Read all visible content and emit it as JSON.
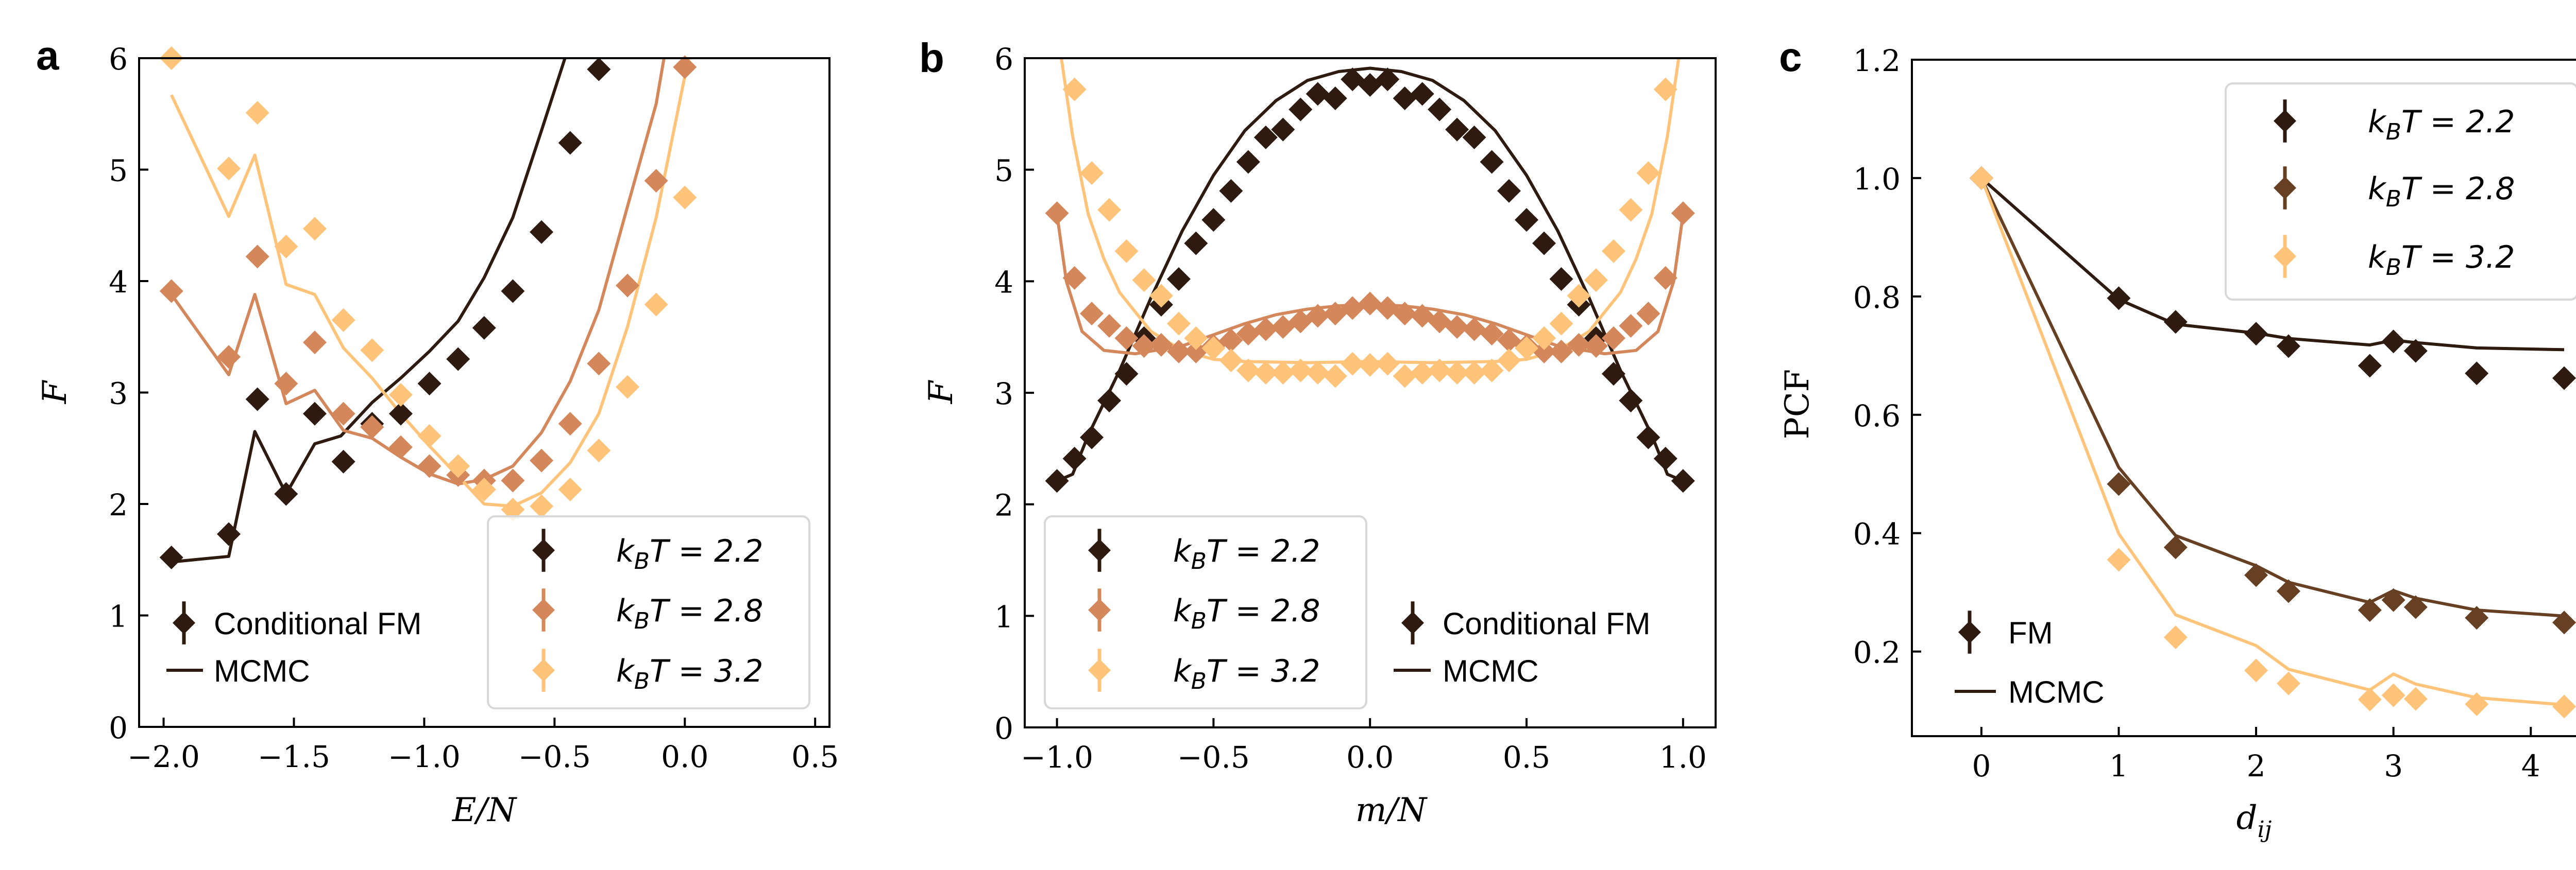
{
  "chart_data": [
    {
      "panel_label": "a",
      "type": "scatter",
      "xlabel": "E/N",
      "ylabel": "F",
      "xlim": [
        -2.094,
        0.555
      ],
      "ylim": [
        0,
        6
      ],
      "xticks": [
        -2.0,
        -1.5,
        -1.0,
        -0.5,
        0.0,
        0.5
      ],
      "xtick_labels": [
        "−2.0",
        "−1.5",
        "−1.0",
        "−0.5",
        "0.0",
        "0.5"
      ],
      "yticks": [
        0,
        1,
        2,
        3,
        4,
        5,
        6
      ],
      "ytick_labels": [
        "0",
        "1",
        "2",
        "3",
        "4",
        "5",
        "6"
      ],
      "legend_series_position": "bottom-right",
      "legend_method_position": "bottom-left",
      "legend_method": {
        "marker_label": "Conditional FM",
        "line_label": "MCMC"
      },
      "series": [
        {
          "name": "kBT = 2.2",
          "label_main": "k",
          "label_sub": "B",
          "label_rest": "T = 2.2",
          "color": "#2e1a0e",
          "points": {
            "x": [
              -1.97,
              -1.75,
              -1.64,
              -1.53,
              -1.42,
              -1.31,
              -1.2,
              -1.09,
              -0.98,
              -0.87,
              -0.77,
              -0.66,
              -0.55,
              -0.44,
              -0.33
            ],
            "y": [
              1.52,
              1.73,
              2.94,
              2.09,
              2.81,
              2.38,
              2.72,
              2.81,
              3.08,
              3.3,
              3.58,
              3.91,
              4.44,
              5.24,
              5.9
            ]
          },
          "line": {
            "x": [
              -1.97,
              -1.75,
              -1.65,
              -1.53,
              -1.42,
              -1.32,
              -1.2,
              -1.09,
              -0.98,
              -0.87,
              -0.77,
              -0.66,
              -0.55,
              -0.46
            ],
            "y": [
              1.48,
              1.53,
              2.65,
              2.09,
              2.54,
              2.61,
              2.91,
              3.13,
              3.37,
              3.64,
              4.03,
              4.57,
              5.35,
              6.0
            ]
          }
        },
        {
          "name": "kBT = 2.8",
          "label_main": "k",
          "label_sub": "B",
          "label_rest": "T = 2.8",
          "color": "#d4875a",
          "points": {
            "x": [
              -1.97,
              -1.75,
              -1.64,
              -1.53,
              -1.42,
              -1.31,
              -1.2,
              -1.09,
              -0.98,
              -0.87,
              -0.77,
              -0.66,
              -0.55,
              -0.44,
              -0.33,
              -0.22,
              -0.11,
              0.0
            ],
            "y": [
              3.91,
              3.32,
              4.22,
              3.08,
              3.45,
              2.81,
              2.69,
              2.51,
              2.34,
              2.26,
              2.21,
              2.21,
              2.39,
              2.72,
              3.26,
              3.96,
              4.9,
              5.92
            ]
          },
          "line": {
            "x": [
              -1.97,
              -1.75,
              -1.65,
              -1.53,
              -1.42,
              -1.31,
              -1.2,
              -1.09,
              -0.98,
              -0.87,
              -0.77,
              -0.66,
              -0.55,
              -0.44,
              -0.33,
              -0.22,
              -0.11,
              -0.08
            ],
            "y": [
              3.88,
              3.16,
              3.88,
              2.9,
              3.02,
              2.66,
              2.59,
              2.42,
              2.27,
              2.18,
              2.22,
              2.34,
              2.64,
              3.1,
              3.74,
              4.67,
              5.59,
              6.0
            ]
          }
        },
        {
          "name": "kBT = 3.2",
          "label_main": "k",
          "label_sub": "B",
          "label_rest": "T = 3.2",
          "color": "#ffc47a",
          "points": {
            "x": [
              -1.97,
              -1.75,
              -1.64,
              -1.53,
              -1.42,
              -1.31,
              -1.2,
              -1.09,
              -0.98,
              -0.87,
              -0.77,
              -0.66,
              -0.55,
              -0.44,
              -0.33,
              -0.22,
              -0.11,
              0.0
            ],
            "y": [
              6.0,
              5.01,
              5.51,
              4.31,
              4.47,
              3.65,
              3.38,
              2.98,
              2.61,
              2.34,
              2.13,
              1.95,
              1.98,
              2.13,
              2.48,
              3.05,
              3.79,
              4.75
            ]
          },
          "line": {
            "x": [
              -1.97,
              -1.75,
              -1.65,
              -1.53,
              -1.42,
              -1.31,
              -1.2,
              -1.09,
              -0.98,
              -0.87,
              -0.77,
              -0.66,
              -0.55,
              -0.44,
              -0.33,
              -0.22,
              -0.11,
              0.0,
              0.015
            ],
            "y": [
              5.67,
              4.58,
              5.13,
              3.97,
              3.88,
              3.4,
              3.13,
              2.81,
              2.52,
              2.25,
              2.0,
              1.98,
              2.1,
              2.37,
              2.81,
              3.59,
              4.57,
              5.84,
              6.0
            ]
          }
        }
      ]
    },
    {
      "panel_label": "b",
      "type": "scatter",
      "xlabel": "m/N",
      "ylabel": "F",
      "xlim": [
        -1.103,
        1.104
      ],
      "ylim": [
        0,
        6
      ],
      "xticks": [
        -1.0,
        -0.5,
        0.0,
        0.5,
        1.0
      ],
      "xtick_labels": [
        "−1.0",
        "−0.5",
        "0.0",
        "0.5",
        "1.0"
      ],
      "yticks": [
        0,
        1,
        2,
        3,
        4,
        5,
        6
      ],
      "ytick_labels": [
        "0",
        "1",
        "2",
        "3",
        "4",
        "5",
        "6"
      ],
      "legend_series_position": "bottom-left",
      "legend_method_position": "bottom-right",
      "legend_method": {
        "marker_label": "Conditional FM",
        "line_label": "MCMC"
      },
      "series": [
        {
          "name": "kBT = 2.2",
          "label_main": "k",
          "label_sub": "B",
          "label_rest": "T = 2.2",
          "color": "#2e1a0e",
          "points": {
            "x": [
              -1,
              -0.944,
              -0.889,
              -0.833,
              -0.778,
              -0.722,
              -0.667,
              -0.611,
              -0.556,
              -0.5,
              -0.444,
              -0.389,
              -0.333,
              -0.278,
              -0.222,
              -0.167,
              -0.111,
              -0.056,
              0,
              0.056,
              0.111,
              0.167,
              0.222,
              0.278,
              0.333,
              0.389,
              0.444,
              0.5,
              0.556,
              0.611,
              0.667,
              0.722,
              0.778,
              0.833,
              0.889,
              0.944,
              1
            ],
            "y": [
              2.21,
              2.41,
              2.6,
              2.93,
              3.17,
              3.49,
              3.79,
              4.02,
              4.34,
              4.55,
              4.81,
              5.07,
              5.29,
              5.36,
              5.54,
              5.68,
              5.64,
              5.81,
              5.76,
              5.81,
              5.64,
              5.68,
              5.54,
              5.36,
              5.29,
              5.07,
              4.81,
              4.55,
              4.34,
              4.02,
              3.79,
              3.49,
              3.17,
              2.93,
              2.6,
              2.41,
              2.21
            ]
          },
          "line": {
            "x": [
              -1,
              -0.95,
              -0.9,
              -0.8,
              -0.7,
              -0.6,
              -0.5,
              -0.4,
              -0.3,
              -0.2,
              -0.1,
              0,
              0.1,
              0.2,
              0.3,
              0.4,
              0.5,
              0.6,
              0.7,
              0.8,
              0.9,
              0.95,
              1
            ],
            "y": [
              2.21,
              2.27,
              2.62,
              3.2,
              3.85,
              4.45,
              4.95,
              5.35,
              5.62,
              5.8,
              5.88,
              5.91,
              5.88,
              5.8,
              5.62,
              5.35,
              4.95,
              4.45,
              3.85,
              3.2,
              2.62,
              2.27,
              2.21
            ]
          }
        },
        {
          "name": "kBT = 2.8",
          "label_main": "k",
          "label_sub": "B",
          "label_rest": "T = 2.8",
          "color": "#d4875a",
          "points": {
            "x": [
              -1,
              -0.944,
              -0.889,
              -0.833,
              -0.778,
              -0.722,
              -0.667,
              -0.611,
              -0.556,
              -0.5,
              -0.444,
              -0.389,
              -0.333,
              -0.278,
              -0.222,
              -0.167,
              -0.111,
              -0.056,
              0,
              0.056,
              0.111,
              0.167,
              0.222,
              0.278,
              0.333,
              0.389,
              0.444,
              0.5,
              0.556,
              0.611,
              0.667,
              0.722,
              0.778,
              0.833,
              0.889,
              0.944,
              1
            ],
            "y": [
              4.61,
              4.03,
              3.71,
              3.6,
              3.49,
              3.42,
              3.43,
              3.37,
              3.37,
              3.42,
              3.47,
              3.53,
              3.57,
              3.59,
              3.64,
              3.69,
              3.71,
              3.76,
              3.8,
              3.76,
              3.71,
              3.69,
              3.64,
              3.59,
              3.57,
              3.53,
              3.47,
              3.42,
              3.37,
              3.37,
              3.43,
              3.42,
              3.49,
              3.6,
              3.71,
              4.03,
              4.61
            ]
          },
          "line": {
            "x": [
              -1,
              -0.97,
              -0.92,
              -0.85,
              -0.75,
              -0.6,
              -0.5,
              -0.4,
              -0.3,
              -0.2,
              -0.1,
              0,
              0.1,
              0.2,
              0.3,
              0.4,
              0.5,
              0.6,
              0.75,
              0.85,
              0.92,
              0.97,
              1
            ],
            "y": [
              4.6,
              4.0,
              3.55,
              3.38,
              3.35,
              3.42,
              3.52,
              3.62,
              3.7,
              3.75,
              3.78,
              3.79,
              3.78,
              3.75,
              3.7,
              3.62,
              3.52,
              3.42,
              3.35,
              3.38,
              3.55,
              4.0,
              4.6
            ]
          }
        },
        {
          "name": "kBT = 3.2",
          "label_main": "k",
          "label_sub": "B",
          "label_rest": "T = 3.2",
          "color": "#ffc47a",
          "points": {
            "x": [
              -0.944,
              -0.889,
              -0.833,
              -0.778,
              -0.722,
              -0.667,
              -0.611,
              -0.556,
              -0.5,
              -0.444,
              -0.389,
              -0.333,
              -0.278,
              -0.222,
              -0.167,
              -0.111,
              -0.056,
              0,
              0.056,
              0.111,
              0.167,
              0.222,
              0.278,
              0.333,
              0.389,
              0.444,
              0.5,
              0.556,
              0.611,
              0.667,
              0.722,
              0.778,
              0.833,
              0.889,
              0.944
            ],
            "y": [
              5.72,
              4.97,
              4.64,
              4.27,
              4.01,
              3.87,
              3.62,
              3.49,
              3.4,
              3.29,
              3.2,
              3.18,
              3.18,
              3.2,
              3.18,
              3.15,
              3.26,
              3.25,
              3.26,
              3.15,
              3.18,
              3.2,
              3.18,
              3.18,
              3.2,
              3.29,
              3.4,
              3.49,
              3.62,
              3.87,
              4.01,
              4.27,
              4.64,
              4.97,
              5.72
            ]
          },
          "line": {
            "x": [
              -0.986,
              -0.95,
              -0.9,
              -0.85,
              -0.8,
              -0.7,
              -0.6,
              -0.5,
              -0.4,
              -0.2,
              0,
              0.2,
              0.4,
              0.5,
              0.6,
              0.7,
              0.8,
              0.85,
              0.9,
              0.95,
              0.986
            ],
            "y": [
              6.0,
              5.3,
              4.6,
              4.2,
              3.9,
              3.55,
              3.38,
              3.3,
              3.28,
              3.27,
              3.28,
              3.27,
              3.28,
              3.3,
              3.38,
              3.55,
              3.9,
              4.2,
              4.6,
              5.3,
              6.0
            ]
          }
        }
      ]
    },
    {
      "panel_label": "c",
      "type": "scatter",
      "xlabel_main": "d",
      "xlabel_sub": "ij",
      "ylabel": "PCF",
      "xlim": [
        -0.506,
        4.498
      ],
      "ylim": [
        0.057,
        1.2
      ],
      "xticks": [
        0,
        1,
        2,
        3,
        4
      ],
      "xtick_labels": [
        "0",
        "1",
        "2",
        "3",
        "4"
      ],
      "yticks": [
        0.2,
        0.4,
        0.6,
        0.8,
        1.0,
        1.2
      ],
      "ytick_labels": [
        "0.2",
        "0.4",
        "0.6",
        "0.8",
        "1.0",
        "1.2"
      ],
      "legend_series_position": "top-right",
      "legend_method_position": "bottom-left",
      "legend_method": {
        "marker_label": "FM",
        "line_label": "MCMC"
      },
      "series": [
        {
          "name": "kBT = 2.2",
          "label_main": "k",
          "label_sub": "B",
          "label_rest": "T = 2.2",
          "color": "#2e1a0e",
          "points": {
            "x": [
              0,
              1,
              1.414,
              2,
              2.236,
              2.828,
              3,
              3.162,
              3.606,
              4.243
            ],
            "y": [
              1.0,
              0.797,
              0.757,
              0.737,
              0.716,
              0.683,
              0.724,
              0.708,
              0.67,
              0.662
            ]
          },
          "line": {
            "x": [
              0,
              1,
              1.414,
              2,
              2.236,
              2.828,
              3,
              3.162,
              3.606,
              4.243
            ],
            "y": [
              1.0,
              0.795,
              0.753,
              0.738,
              0.729,
              0.718,
              0.726,
              0.722,
              0.713,
              0.71
            ]
          }
        },
        {
          "name": "kBT = 2.8",
          "label_main": "k",
          "label_sub": "B",
          "label_rest": "T = 2.8",
          "color": "#673f22",
          "points": {
            "x": [
              0,
              1,
              1.414,
              2,
              2.236,
              2.828,
              3,
              3.162,
              3.606,
              4.243
            ],
            "y": [
              1.0,
              0.483,
              0.376,
              0.329,
              0.302,
              0.27,
              0.287,
              0.275,
              0.257,
              0.249
            ]
          },
          "line": {
            "x": [
              0,
              1,
              1.414,
              2,
              2.236,
              2.828,
              3,
              3.162,
              3.606,
              4.243
            ],
            "y": [
              1.0,
              0.511,
              0.396,
              0.345,
              0.317,
              0.283,
              0.303,
              0.29,
              0.27,
              0.26
            ]
          }
        },
        {
          "name": "kBT = 3.2",
          "label_main": "k",
          "label_sub": "B",
          "label_rest": "T = 3.2",
          "color": "#ffc47a",
          "points": {
            "x": [
              0,
              1,
              1.414,
              2,
              2.236,
              2.828,
              3,
              3.162,
              3.606,
              4.243
            ],
            "y": [
              1.0,
              0.355,
              0.224,
              0.168,
              0.146,
              0.119,
              0.126,
              0.12,
              0.111,
              0.107
            ]
          },
          "line": {
            "x": [
              0,
              1,
              1.414,
              2,
              2.236,
              2.828,
              3,
              3.162,
              3.606,
              4.243
            ],
            "y": [
              1.0,
              0.399,
              0.262,
              0.21,
              0.17,
              0.135,
              0.162,
              0.145,
              0.122,
              0.11
            ]
          }
        }
      ]
    }
  ]
}
